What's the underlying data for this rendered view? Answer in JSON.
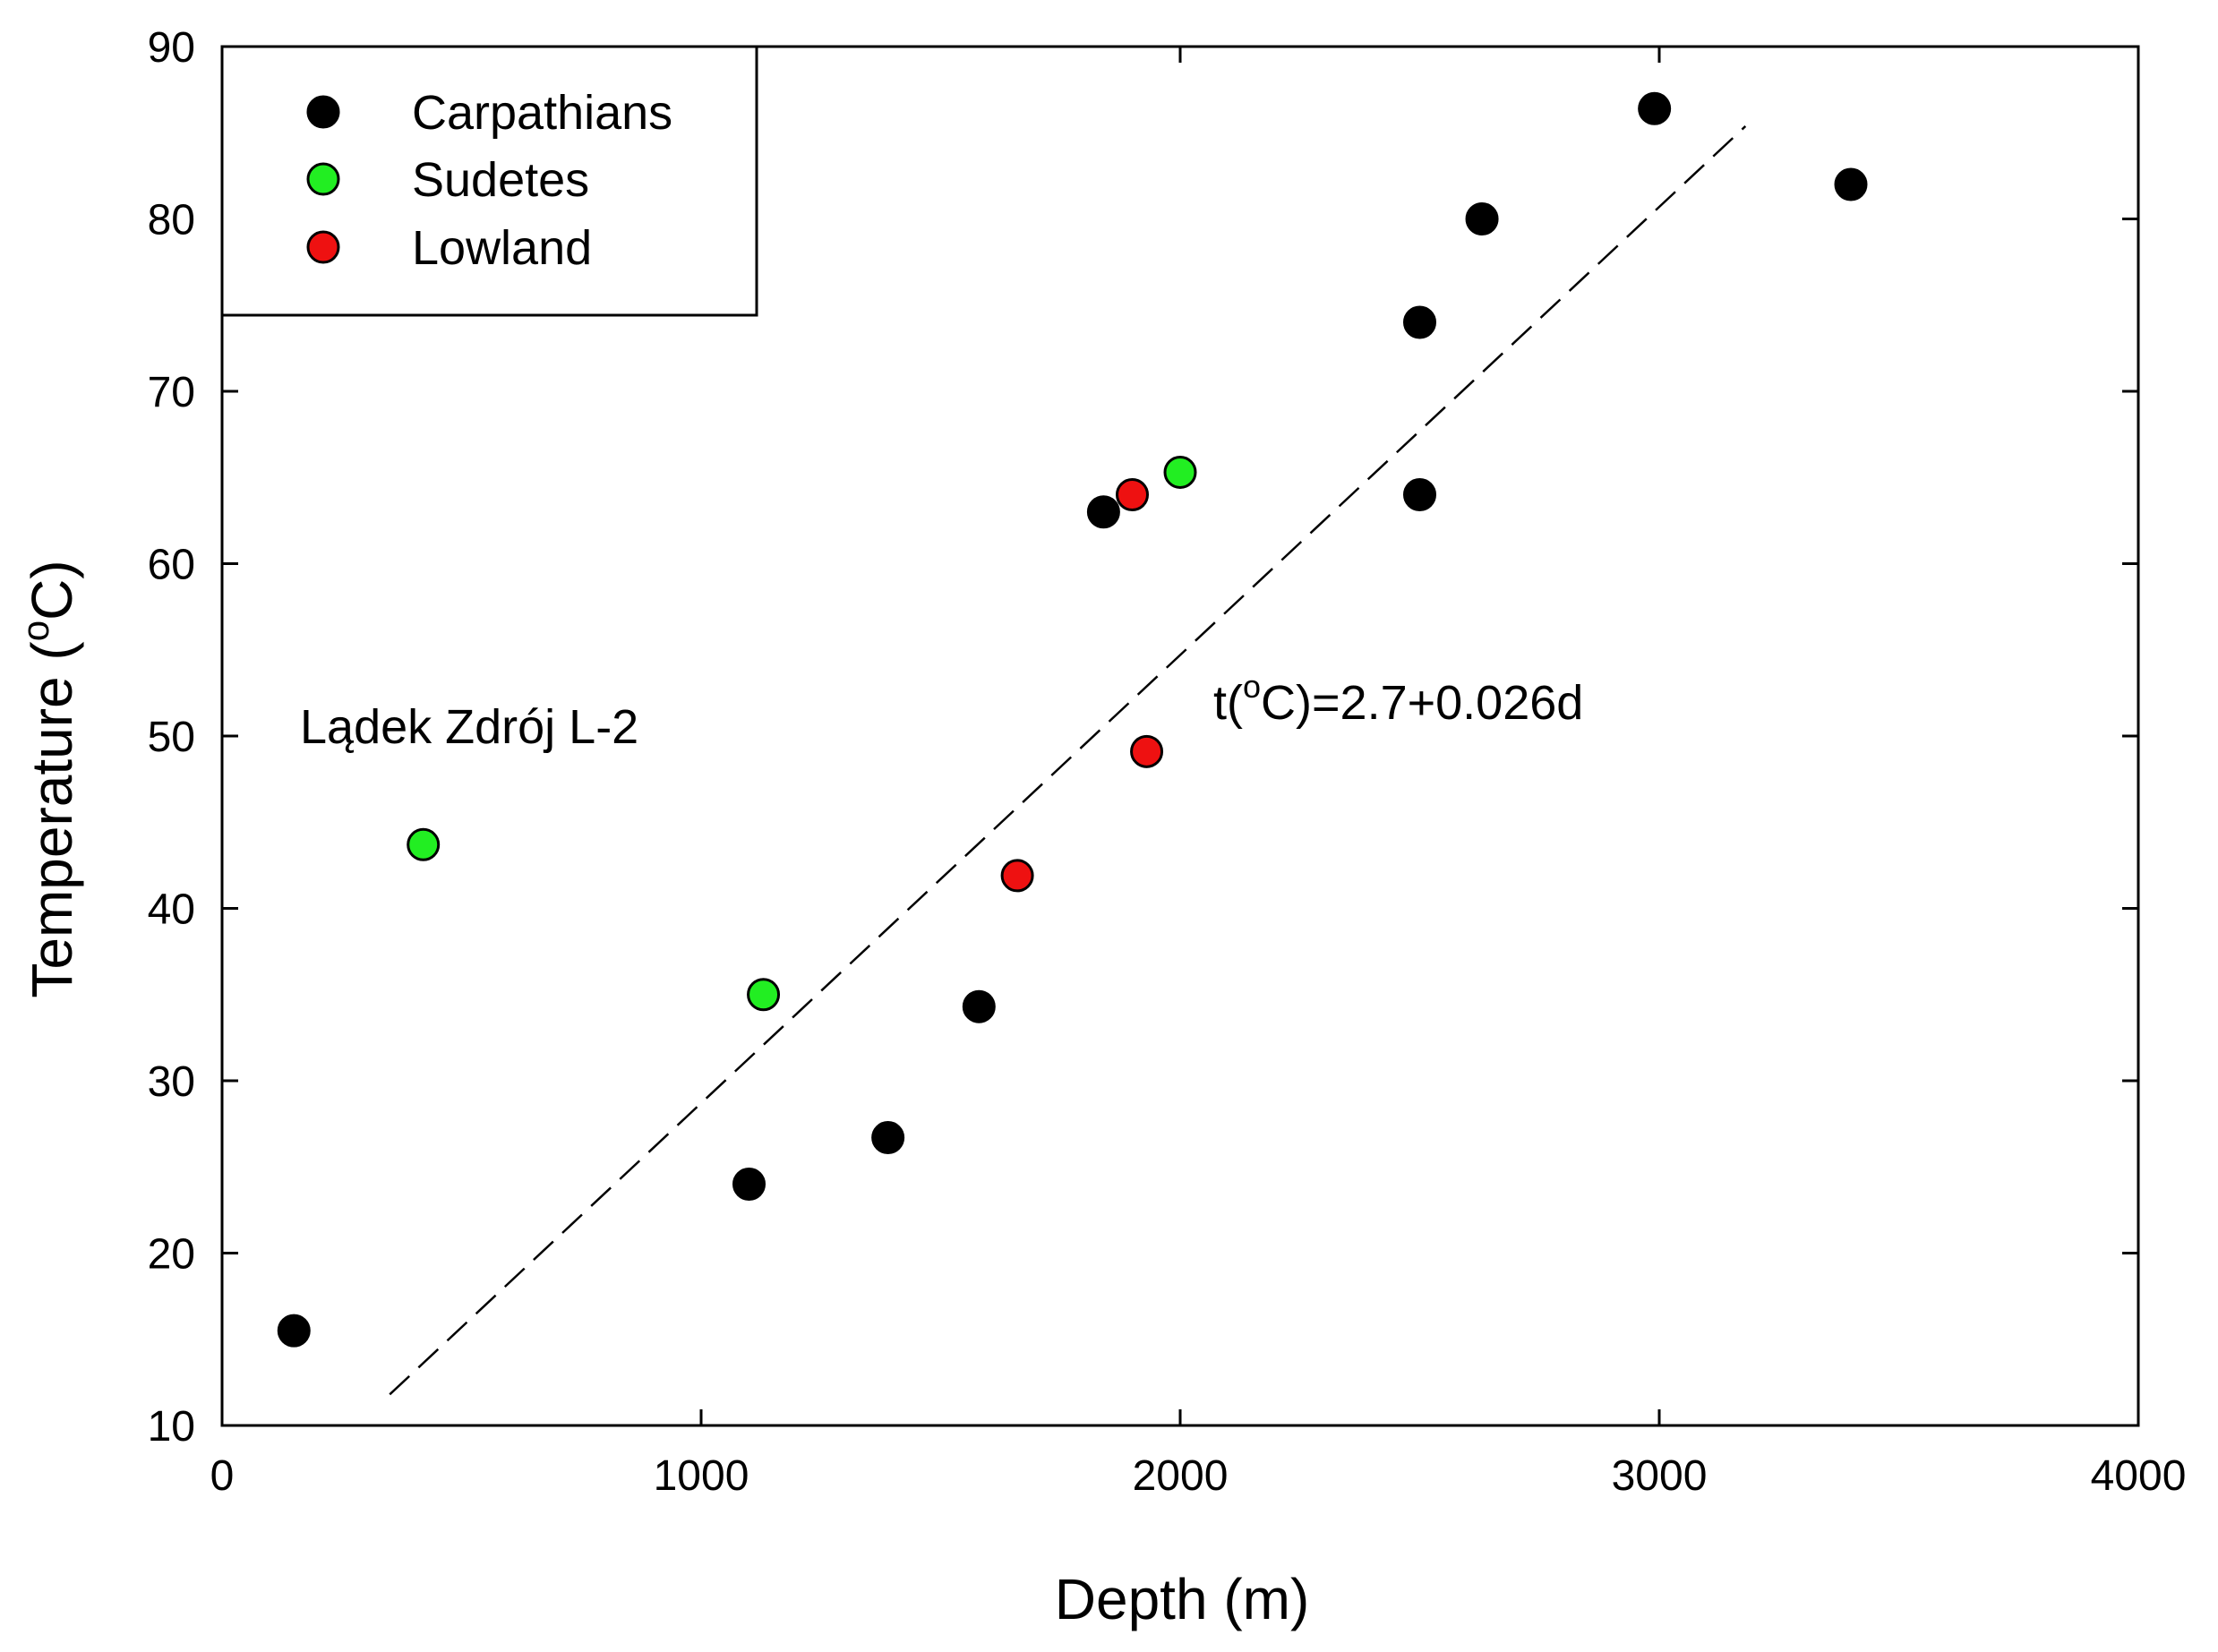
{
  "chart_data": {
    "type": "scatter",
    "title": "",
    "xlabel": "Depth (m)",
    "ylabel_parts": [
      "Temperature (",
      "o",
      "C)"
    ],
    "xlim": [
      0,
      4000
    ],
    "ylim": [
      10,
      90
    ],
    "xticks": [
      0,
      1000,
      2000,
      3000,
      4000
    ],
    "yticks": [
      10,
      20,
      30,
      40,
      50,
      60,
      70,
      80,
      90
    ],
    "grid": false,
    "legend_position": "top-left",
    "series": [
      {
        "name": "Carpathians",
        "color": "#000000",
        "points": [
          [
            150,
            15.5
          ],
          [
            1100,
            24
          ],
          [
            1390,
            26.7
          ],
          [
            1580,
            34.3
          ],
          [
            1840,
            63
          ],
          [
            2500,
            64
          ],
          [
            2500,
            74
          ],
          [
            2630,
            80
          ],
          [
            2990,
            86.4
          ],
          [
            3400,
            82
          ]
        ]
      },
      {
        "name": "Sudetes",
        "color": "#22ee22",
        "points": [
          [
            420,
            43.7
          ],
          [
            1130,
            35
          ],
          [
            2000,
            65.3
          ]
        ]
      },
      {
        "name": "Lowland",
        "color": "#ee1111",
        "points": [
          [
            1660,
            41.9
          ],
          [
            1900,
            64
          ],
          [
            1930,
            49.1
          ]
        ]
      }
    ],
    "fit_line": {
      "style": "dashed",
      "color": "#000000",
      "intercept": 2.7,
      "slope": 0.026,
      "x_range": [
        350,
        3180
      ],
      "label_parts": [
        "t(",
        "o",
        "C)=2.7+0.026d"
      ]
    },
    "annotations": [
      {
        "text": "Lądek Zdrój L-2"
      }
    ]
  }
}
